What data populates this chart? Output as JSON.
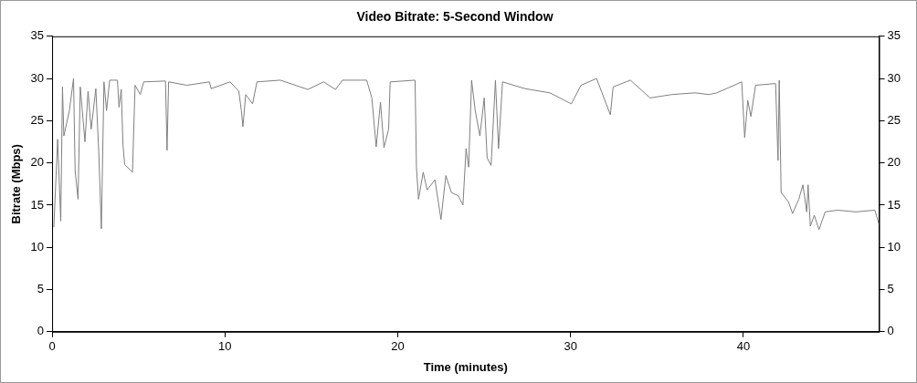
{
  "chart_data": {
    "type": "line",
    "title": "Video Bitrate: 5-Second Window",
    "xlabel": "Time (minutes)",
    "ylabel": "Bitrate (Mbps)",
    "xlim": [
      0,
      47.85
    ],
    "xticks": [
      0,
      10,
      20,
      30,
      40
    ],
    "ylim": [
      0,
      35
    ],
    "yticks": [
      0,
      5,
      10,
      15,
      20,
      25,
      30,
      35
    ],
    "y2lim": [
      0,
      35
    ],
    "y2ticks": [
      0,
      5,
      10,
      15,
      20,
      25,
      30,
      35
    ],
    "grid": false,
    "legend": false,
    "marker": "none",
    "line_style": "solid",
    "series": [
      {
        "color": "#7f7f7f",
        "x": [
          0.1,
          0.32,
          0.5,
          0.6,
          0.68,
          1.0,
          1.24,
          1.33,
          1.5,
          1.63,
          1.9,
          2.08,
          2.26,
          2.53,
          2.7,
          2.85,
          3.0,
          3.15,
          3.33,
          3.78,
          3.87,
          4.0,
          4.1,
          4.2,
          4.65,
          4.8,
          5.1,
          5.3,
          6.56,
          6.65,
          6.74,
          7.8,
          9.1,
          9.2,
          10.3,
          10.8,
          10.95,
          11.04,
          11.2,
          11.6,
          11.85,
          13.2,
          14.8,
          15.7,
          16.4,
          16.8,
          18.2,
          18.5,
          18.75,
          19.0,
          19.2,
          19.47,
          19.56,
          21.0,
          21.08,
          21.2,
          21.47,
          21.7,
          22.15,
          22.5,
          22.78,
          23.1,
          23.5,
          23.77,
          23.95,
          24.1,
          24.27,
          24.48,
          24.75,
          25.0,
          25.17,
          25.4,
          25.65,
          25.83,
          26.06,
          27.35,
          28.8,
          30.04,
          30.6,
          31.5,
          32.3,
          32.46,
          33.46,
          34.6,
          35.86,
          37.2,
          38.0,
          38.46,
          39.9,
          40.07,
          40.25,
          40.43,
          40.7,
          41.86,
          42.0,
          42.07,
          42.18,
          42.6,
          42.84,
          43.2,
          43.44,
          43.66,
          43.74,
          43.87,
          44.1,
          44.37,
          44.73,
          45.45,
          46.5,
          47.6,
          47.85
        ],
        "values": [
          12.4,
          22.8,
          13.1,
          29.0,
          23.2,
          26.2,
          30,
          19.1,
          15.7,
          29,
          22.5,
          28.5,
          24,
          28.8,
          21.3,
          12.2,
          29.6,
          26.2,
          29.8,
          29.8,
          26.6,
          28.7,
          22.1,
          19.8,
          18.9,
          29.2,
          28.1,
          29.6,
          29.7,
          21.5,
          29.6,
          29.2,
          29.6,
          28.8,
          29.6,
          28.5,
          26.2,
          24.3,
          28.1,
          27,
          29.6,
          29.8,
          28.7,
          29.6,
          28.7,
          29.8,
          29.8,
          27.7,
          21.9,
          27.2,
          21.8,
          24,
          29.6,
          29.8,
          19.5,
          15.7,
          18.9,
          16.8,
          18,
          13.3,
          18.5,
          16.5,
          16.1,
          15,
          21.7,
          19.5,
          29.8,
          26.2,
          23.2,
          27.7,
          20.6,
          19.7,
          29.8,
          21.7,
          29.6,
          28.8,
          28.3,
          27,
          29.2,
          30,
          25.7,
          29,
          29.8,
          27.7,
          28.1,
          28.3,
          28.1,
          28.3,
          29.6,
          23,
          27.4,
          25.5,
          29.2,
          29.4,
          20.3,
          29.8,
          16.5,
          15.4,
          14,
          15.7,
          17.4,
          14.2,
          17.4,
          12.5,
          13.8,
          12.1,
          14.2,
          14.4,
          14.2,
          14.4,
          12.7
        ]
      }
    ]
  }
}
